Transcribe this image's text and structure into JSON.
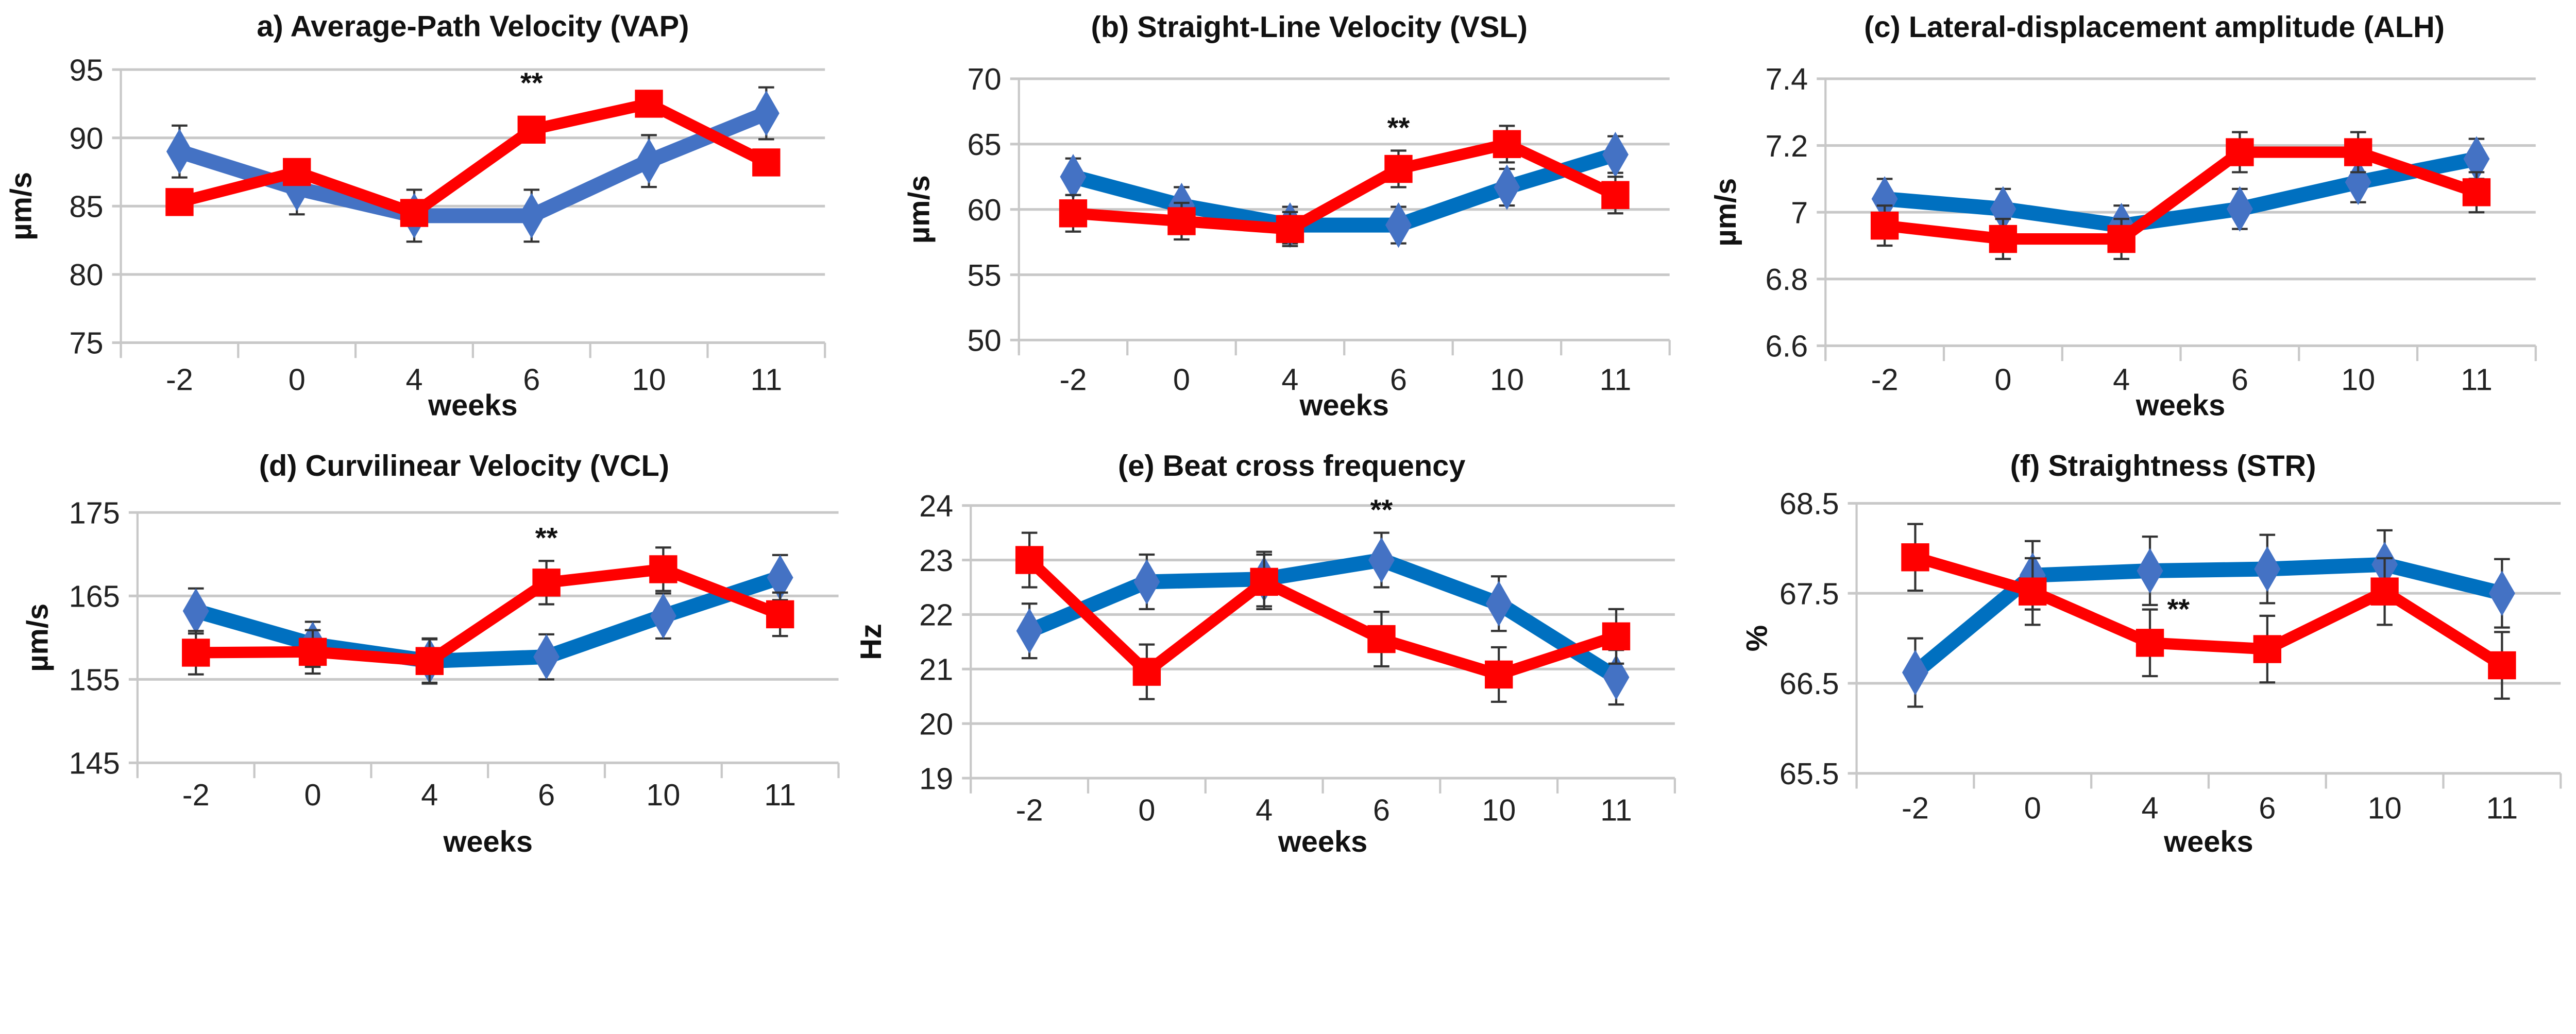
{
  "chart_data": [
    {
      "type": "line",
      "title": "a) Average-Path Velocity (VAP)",
      "xlabel": "weeks",
      "ylabel": "µm/s",
      "categories": [
        "-2",
        "0",
        "4",
        "6",
        "10",
        "11"
      ],
      "ylim": [
        75,
        95
      ],
      "yticks": [
        "75",
        "80",
        "85",
        "90",
        "95"
      ],
      "grid": true,
      "significance": {
        "label": "**",
        "at": "6"
      },
      "series": [
        {
          "color": "#4472C4",
          "marker": "diamond",
          "values": [
            89.0,
            86.3,
            84.3,
            84.3,
            88.3,
            91.8
          ],
          "error": [
            1.9,
            1.9,
            1.9,
            1.9,
            1.9,
            1.9
          ]
        },
        {
          "color": "#FF0000",
          "marker": "square",
          "values": [
            85.3,
            87.5,
            84.5,
            90.6,
            92.5,
            88.2
          ],
          "error": [
            0,
            0,
            0,
            0,
            0,
            0
          ]
        }
      ]
    },
    {
      "type": "line",
      "title": "(b) Straight-Line Velocity (VSL)",
      "xlabel": "weeks",
      "ylabel": "µm/s",
      "categories": [
        "-2",
        "0",
        "4",
        "6",
        "10",
        "11"
      ],
      "ylim": [
        50,
        70
      ],
      "yticks": [
        "50",
        "55",
        "60",
        "65",
        "70"
      ],
      "grid": true,
      "significance": {
        "label": "**",
        "at": "6"
      },
      "series": [
        {
          "color": "#0070C0",
          "marker": "diamond",
          "values": [
            62.5,
            60.3,
            58.8,
            58.8,
            61.7,
            64.2
          ],
          "error": [
            1.4,
            1.4,
            1.4,
            1.4,
            1.4,
            1.4
          ]
        },
        {
          "color": "#FF0000",
          "marker": "square",
          "values": [
            59.7,
            59.1,
            58.5,
            63.1,
            65.0,
            61.1
          ],
          "error": [
            1.4,
            1.4,
            1.3,
            1.4,
            1.4,
            1.4
          ]
        }
      ]
    },
    {
      "type": "line",
      "title": "(c) Lateral-displacement amplitude (ALH)",
      "xlabel": "weeks",
      "ylabel": "µm/s",
      "categories": [
        "-2",
        "0",
        "4",
        "6",
        "10",
        "11"
      ],
      "ylim": [
        6.6,
        7.4
      ],
      "yticks": [
        "6.6",
        "6.8",
        "7",
        "7.2",
        "7.4"
      ],
      "grid": true,
      "significance": null,
      "series": [
        {
          "color": "#0070C0",
          "marker": "diamond",
          "values": [
            7.04,
            7.01,
            6.96,
            7.01,
            7.09,
            7.16
          ],
          "error": [
            0.06,
            0.06,
            0.06,
            0.06,
            0.06,
            0.06
          ]
        },
        {
          "color": "#FF0000",
          "marker": "square",
          "values": [
            6.96,
            6.92,
            6.92,
            7.18,
            7.18,
            7.06
          ],
          "error": [
            0.06,
            0.06,
            0.06,
            0.06,
            0.06,
            0.06
          ]
        }
      ]
    },
    {
      "type": "line",
      "title": "(d) Curvilinear Velocity (VCL)",
      "xlabel": "weeks",
      "ylabel": "µm/s",
      "categories": [
        "-2",
        "0",
        "4",
        "6",
        "10",
        "11"
      ],
      "ylim": [
        145,
        175
      ],
      "yticks": [
        "145",
        "155",
        "165",
        "175"
      ],
      "grid": true,
      "significance": {
        "label": "**",
        "at": "6"
      },
      "series": [
        {
          "color": "#0070C0",
          "marker": "diamond",
          "values": [
            163.2,
            159.2,
            157.2,
            157.7,
            162.6,
            167.2
          ],
          "error": [
            2.7,
            2.7,
            2.7,
            2.7,
            2.7,
            2.7
          ]
        },
        {
          "color": "#FF0000",
          "marker": "square",
          "values": [
            158.2,
            158.3,
            157.2,
            166.6,
            168.2,
            162.8
          ],
          "error": [
            2.6,
            2.6,
            2.6,
            2.6,
            2.6,
            2.6
          ]
        }
      ]
    },
    {
      "type": "line",
      "title": "(e) Beat cross frequency",
      "xlabel": "weeks",
      "ylabel": "Hz",
      "categories": [
        "-2",
        "0",
        "4",
        "6",
        "10",
        "11"
      ],
      "ylim": [
        19,
        24
      ],
      "yticks": [
        "19",
        "20",
        "21",
        "22",
        "23",
        "24"
      ],
      "grid": true,
      "significance": {
        "label": "**",
        "at": "6"
      },
      "series": [
        {
          "color": "#0070C0",
          "marker": "diamond",
          "values": [
            21.7,
            22.6,
            22.65,
            23.0,
            22.2,
            20.85
          ],
          "error": [
            0.5,
            0.5,
            0.5,
            0.5,
            0.5,
            0.5
          ]
        },
        {
          "color": "#FF0000",
          "marker": "square",
          "values": [
            23.0,
            20.95,
            22.6,
            21.55,
            20.9,
            21.6
          ],
          "error": [
            0.5,
            0.5,
            0.5,
            0.5,
            0.5,
            0.5
          ]
        }
      ]
    },
    {
      "type": "line",
      "title": "(f) Straightness (STR)",
      "xlabel": "weeks",
      "ylabel": "%",
      "categories": [
        "-2",
        "0",
        "4",
        "6",
        "10",
        "11"
      ],
      "ylim": [
        65.5,
        68.5
      ],
      "yticks": [
        "65.5",
        "66.5",
        "67.5",
        "68.5"
      ],
      "grid": true,
      "significance": {
        "label": "**",
        "at": "4"
      },
      "series": [
        {
          "color": "#0070C0",
          "marker": "diamond",
          "values": [
            66.62,
            67.7,
            67.75,
            67.77,
            67.82,
            67.5
          ],
          "error": [
            0.38,
            0.38,
            0.38,
            0.38,
            0.38,
            0.38
          ]
        },
        {
          "color": "#FF0000",
          "marker": "square",
          "values": [
            67.9,
            67.52,
            66.95,
            66.88,
            67.52,
            66.7
          ],
          "error": [
            0.37,
            0.37,
            0.37,
            0.37,
            0.37,
            0.37
          ]
        }
      ]
    }
  ]
}
